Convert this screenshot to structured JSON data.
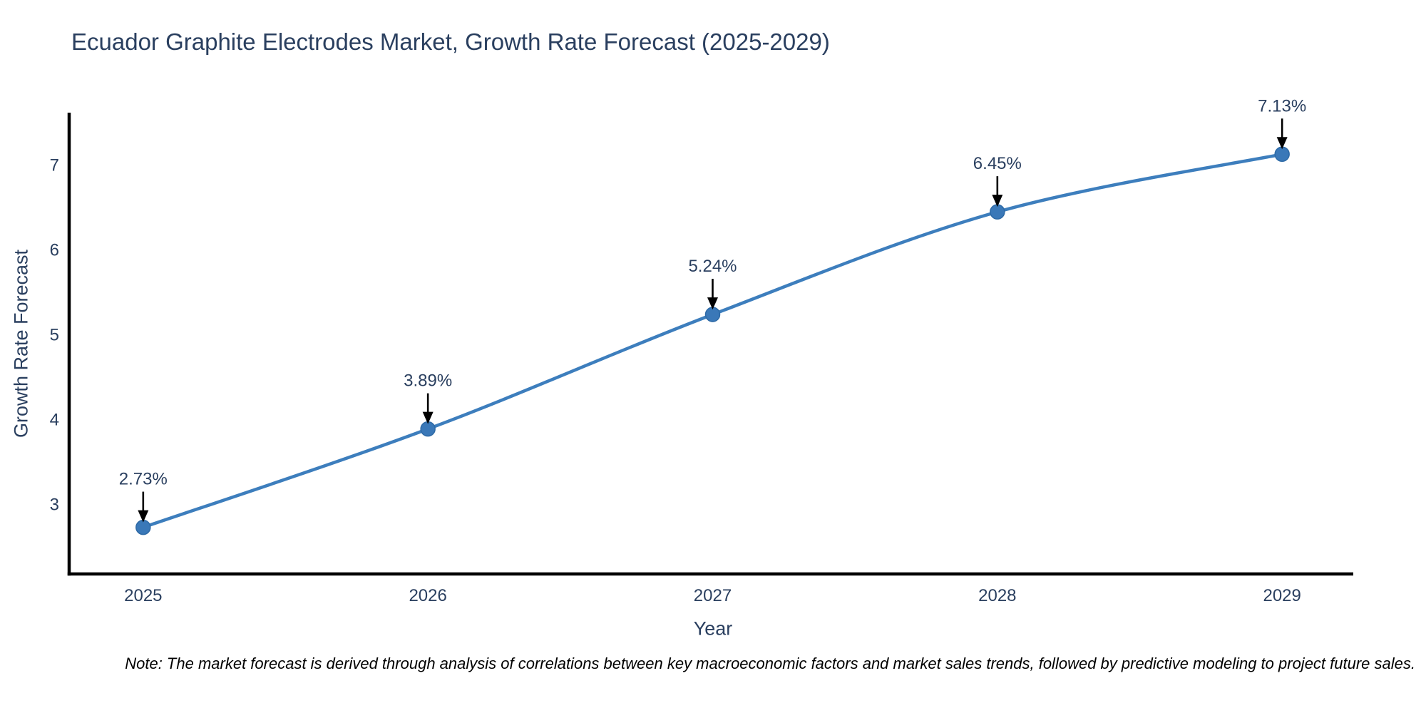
{
  "figure": {
    "title": "Ecuador Graphite Electrodes Market, Growth Rate Forecast (2025-2029)"
  },
  "note": {
    "text": "Note: The market forecast is derived through analysis of correlations between key macroeconomic factors and market sales trends, followed by predictive modeling to project future sales."
  },
  "chart_data": {
    "type": "line",
    "title": "Ecuador Graphite Electrodes Market, Growth Rate Forecast (2025-2029)",
    "xlabel": "Year",
    "ylabel": "Growth Rate Forecast",
    "x": [
      2025,
      2026,
      2027,
      2028,
      2029
    ],
    "values": [
      2.73,
      3.89,
      5.24,
      6.45,
      7.13
    ],
    "point_labels": [
      "2.73%",
      "3.89%",
      "5.24%",
      "6.45%",
      "7.13%"
    ],
    "xticks": [
      2025,
      2026,
      2027,
      2028,
      2029
    ],
    "yticks": [
      3,
      4,
      5,
      6,
      7
    ],
    "xlim": [
      2024.74,
      2029.25
    ],
    "ylim": [
      2.18,
      7.62
    ],
    "grid": false,
    "legend": null,
    "colors": {
      "line": "#3d7ebd",
      "marker_fill": "#3a78b8",
      "marker_stroke": "#2e6aa6",
      "arrow": "#000000",
      "text": "#2a3f5f",
      "axis": "#000000"
    }
  }
}
